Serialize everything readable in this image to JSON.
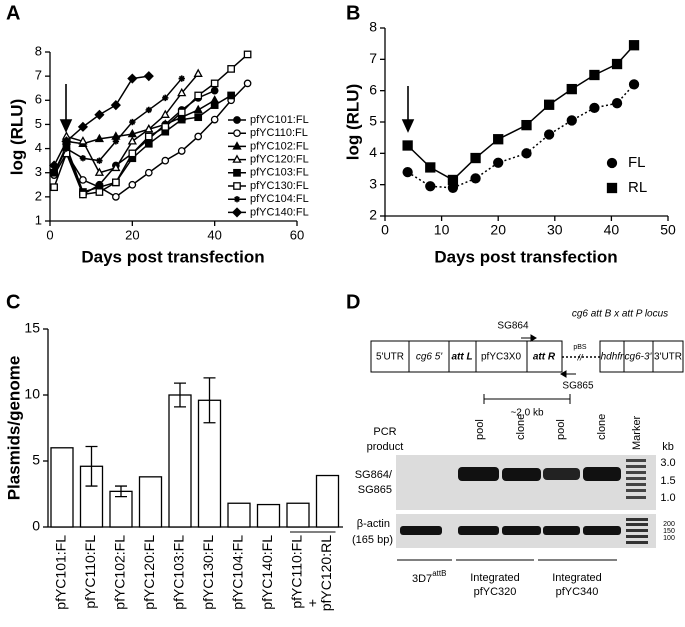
{
  "panels": [
    "A",
    "B",
    "C",
    "D"
  ],
  "chart_data": [
    {
      "type": "line",
      "xlabel": "Days post transfection",
      "ylabel": "log (RLU)",
      "xlim": [
        0,
        60
      ],
      "xticks": [
        0,
        20,
        40,
        60
      ],
      "ylim": [
        1,
        8
      ],
      "yticks": [
        1,
        2,
        3,
        4,
        5,
        6,
        7,
        8
      ],
      "legend": "right",
      "series": [
        {
          "name": "pfYC101:FL",
          "color": "#000000",
          "marker": "circle",
          "filled": true,
          "linestyle": "solid",
          "x": [
            1,
            4,
            8,
            12,
            16,
            20,
            24,
            28,
            32,
            36,
            40
          ],
          "values": [
            3.0,
            4.0,
            2.1,
            2.5,
            3.3,
            3.8,
            4.4,
            5.0,
            5.6,
            6.1,
            6.4
          ]
        },
        {
          "name": "pfYC110:FL",
          "color": "#000000",
          "marker": "circle",
          "filled": false,
          "linestyle": "solid",
          "x": [
            1,
            4,
            8,
            12,
            16,
            20,
            24,
            28,
            32,
            36,
            40,
            44,
            48
          ],
          "values": [
            2.9,
            3.8,
            2.7,
            2.4,
            2.0,
            2.5,
            3.0,
            3.5,
            3.9,
            4.5,
            5.2,
            6.0,
            6.7
          ]
        },
        {
          "name": "pfYC102:FL",
          "color": "#000000",
          "marker": "triangle",
          "filled": true,
          "linestyle": "solid",
          "x": [
            4,
            8,
            12,
            16,
            20,
            24,
            28,
            32,
            36,
            40
          ],
          "values": [
            4.3,
            4.2,
            4.4,
            4.5,
            4.6,
            4.8,
            5.0,
            5.3,
            5.6,
            6.0
          ]
        },
        {
          "name": "pfYC120:FL",
          "color": "#000000",
          "marker": "triangle",
          "filled": false,
          "linestyle": "solid",
          "x": [
            4,
            8,
            12,
            16,
            20,
            24,
            28,
            32,
            36
          ],
          "values": [
            4.5,
            4.3,
            3.0,
            3.2,
            4.3,
            4.8,
            5.4,
            6.3,
            7.1
          ]
        },
        {
          "name": "pfYC103:FL",
          "color": "#000000",
          "marker": "square",
          "filled": true,
          "linestyle": "solid",
          "x": [
            1,
            4,
            8,
            12,
            16,
            20,
            24,
            28,
            32,
            36,
            40,
            44
          ],
          "values": [
            3.0,
            4.1,
            2.2,
            2.4,
            2.6,
            3.6,
            4.2,
            4.7,
            5.2,
            5.3,
            5.8,
            6.2
          ]
        },
        {
          "name": "pfYC130:FL",
          "color": "#000000",
          "marker": "square",
          "filled": false,
          "linestyle": "solid",
          "x": [
            1,
            4,
            8,
            12,
            16,
            20,
            24,
            28,
            32,
            36,
            40,
            44,
            48
          ],
          "values": [
            2.4,
            3.8,
            2.1,
            2.2,
            2.6,
            3.8,
            4.5,
            4.9,
            5.5,
            6.2,
            6.7,
            7.3,
            7.9
          ]
        },
        {
          "name": "pfYC104:FL",
          "color": "#000000",
          "marker": "plus",
          "filled": true,
          "linestyle": "solid",
          "x": [
            1,
            4,
            8,
            12,
            16,
            20,
            24,
            28,
            32
          ],
          "values": [
            3.0,
            4.0,
            3.6,
            3.5,
            4.3,
            5.1,
            5.6,
            6.1,
            6.9
          ]
        },
        {
          "name": "pfYC140:FL",
          "color": "#000000",
          "marker": "diamond",
          "filled": true,
          "linestyle": "solid",
          "x": [
            1,
            4,
            8,
            12,
            16,
            20,
            24
          ],
          "values": [
            3.3,
            4.3,
            4.9,
            5.4,
            5.8,
            6.9,
            7.0
          ]
        }
      ]
    },
    {
      "type": "line",
      "xlabel": "Days post transfection",
      "ylabel": "log (RLU)",
      "xlim": [
        0,
        50
      ],
      "xticks": [
        0,
        10,
        20,
        30,
        40,
        50
      ],
      "ylim": [
        2,
        8
      ],
      "yticks": [
        2,
        3,
        4,
        5,
        6,
        7,
        8
      ],
      "legend": "right",
      "series": [
        {
          "name": "FL",
          "color": "#000000",
          "marker": "circle",
          "filled": true,
          "linestyle": "dotted",
          "x": [
            4,
            8,
            12,
            16,
            20,
            25,
            29,
            33,
            37,
            41,
            44
          ],
          "values": [
            3.4,
            2.95,
            2.9,
            3.2,
            3.7,
            4.0,
            4.6,
            5.05,
            5.45,
            5.6,
            6.2
          ]
        },
        {
          "name": "RL",
          "color": "#000000",
          "marker": "square",
          "filled": true,
          "linestyle": "solid",
          "x": [
            4,
            8,
            12,
            16,
            20,
            25,
            29,
            33,
            37,
            41,
            44
          ],
          "values": [
            4.25,
            3.55,
            3.15,
            3.85,
            4.45,
            4.9,
            5.55,
            6.05,
            6.5,
            6.85,
            7.45
          ]
        }
      ]
    },
    {
      "type": "bar",
      "ylabel": "Plasmids/genome",
      "categories": [
        "pfYC101:FL",
        "pfYC110:FL",
        "pfYC102:FL",
        "pfYC120:FL",
        "pfYC103:FL",
        "pfYC130:FL",
        "pfYC104:FL",
        "pfYC140:FL",
        "pfYC110:FL",
        "pfYC120:RL"
      ],
      "values": [
        6.0,
        4.6,
        2.7,
        3.8,
        10.0,
        9.6,
        1.8,
        1.7,
        1.8,
        3.9
      ],
      "errors": [
        null,
        1.5,
        0.4,
        null,
        0.9,
        1.7,
        null,
        null,
        null,
        null
      ],
      "color": "#ffffff",
      "ylim": [
        0,
        15
      ],
      "yticks": [
        0,
        5,
        10,
        15
      ],
      "join_label": "+"
    }
  ],
  "diagram": {
    "locus": "cg6 att B x att P locus",
    "segments": [
      "5'UTR",
      "cg6 5'",
      "att L",
      "pfYC3X0",
      "att R",
      "hdhfr",
      "cg6-3'",
      "3'UTR"
    ],
    "pbs": "pBS",
    "break": "//",
    "primer_f": "SG864",
    "primer_r": "SG865",
    "size": "~2.0 kb",
    "pcr": [
      "PCR",
      "product"
    ],
    "lanes": [
      "pool",
      "clone",
      "pool",
      "clone",
      "Marker"
    ],
    "kb": "kb",
    "kb_marks": [
      "3.0",
      "1.5",
      "1.0"
    ],
    "row1": [
      "SG864/",
      "SG865"
    ],
    "row2": [
      "β-actin",
      "(165 bp)"
    ],
    "bp_marks": [
      "200",
      "150",
      "100"
    ],
    "group1": {
      "base": "3D7",
      "sup": "attB"
    },
    "group2": [
      "Integrated",
      "pfYC320"
    ],
    "group3": [
      "Integrated",
      "pfYC340"
    ]
  }
}
